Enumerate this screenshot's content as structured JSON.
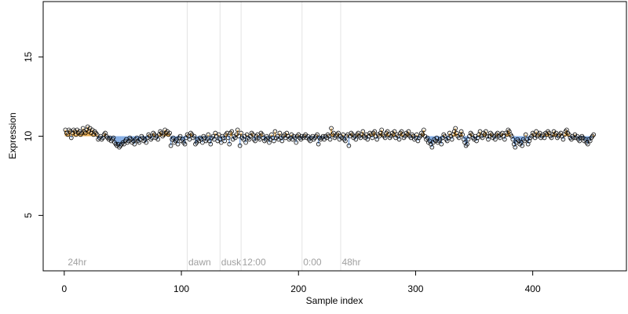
{
  "chart_data": {
    "type": "scatter",
    "title": "",
    "xlabel": "Sample index",
    "ylabel": "Expression",
    "xlim": [
      -18,
      480
    ],
    "ylim": [
      1.5,
      18.5
    ],
    "x_ticks": [
      0,
      100,
      200,
      300,
      400
    ],
    "y_ticks": [
      5,
      10,
      15
    ],
    "grid": false,
    "legend": "none",
    "annotations": [
      {
        "label": "24hr",
        "x": 3
      },
      {
        "label": "dawn",
        "x": 106
      },
      {
        "label": "dusk",
        "x": 134
      },
      {
        "label": "12:00",
        "x": 152
      },
      {
        "label": "0:00",
        "x": 204
      },
      {
        "label": "48hr",
        "x": 237
      }
    ],
    "vlines": [
      105,
      133,
      151,
      203,
      236
    ],
    "band_colors": {
      "above": "#e8a33a",
      "below": "#6f9fe0"
    },
    "series": [
      {
        "x_start": 1,
        "values": [
          10.4,
          10.2,
          10.1,
          10.4,
          10.3,
          9.9,
          10.2,
          10.4,
          10.3,
          10.1,
          10.4,
          10.2,
          10.3,
          10.1,
          10.2,
          10.5,
          10.3,
          10.2,
          10.4,
          10.6,
          10.3,
          10.5,
          10.2,
          10.4,
          10.1,
          10.3,
          10.2,
          10.1,
          9.8,
          9.9,
          10.0,
          9.8,
          9.9,
          10.1,
          10.2,
          10.0,
          9.9,
          9.8,
          9.9,
          9.7,
          9.8,
          9.9,
          9.6,
          9.5,
          9.4,
          9.5,
          9.3,
          9.4,
          9.5,
          9.6,
          9.5,
          9.7,
          9.8,
          9.6,
          9.7,
          9.9,
          9.8,
          9.6,
          9.7,
          9.5,
          9.8,
          9.9,
          9.7,
          9.6,
          9.8,
          10.0,
          9.9,
          9.7,
          9.8,
          9.6,
          9.9,
          10.1,
          10.0,
          9.8,
          9.9,
          10.2,
          10.1,
          9.9,
          10.0,
          9.8,
          10.1,
          10.3,
          10.2,
          10.0,
          10.1,
          10.4,
          10.2,
          10.3,
          10.1,
          10.2,
          9.4,
          9.8,
          9.9,
          9.6,
          9.7,
          9.8,
          9.5,
          9.9,
          10.0,
          9.7,
          9.8,
          9.6,
          9.5,
          9.9,
          10.1,
          10.0,
          9.8,
          10.2,
          10.1,
          9.9,
          10.0,
          9.5,
          9.6,
          9.8,
          9.7,
          9.9,
          9.8,
          9.6,
          10.0,
          9.9,
          9.7,
          9.8,
          10.1,
          9.7,
          9.5,
          9.9,
          10.0,
          9.8,
          10.2,
          10.0,
          9.7,
          10.1,
          9.8,
          9.6,
          10.0,
          9.9,
          9.7,
          10.1,
          10.2,
          9.9,
          9.5,
          10.2,
          10.3,
          9.8,
          10.0,
          9.9,
          10.1,
          10.4,
          10.0,
          9.4,
          10.2,
          9.9,
          9.8,
          10.0,
          9.6,
          10.1,
          9.9,
          9.8,
          10.0,
          10.2,
          10.1,
          9.8,
          9.7,
          10.0,
          10.1,
          9.9,
          9.8,
          10.2,
          10.1,
          9.9,
          9.7,
          9.8,
          10.0,
          9.9,
          9.6,
          9.8,
          10.1,
          9.9,
          9.7,
          10.3,
          9.9,
          10.0,
          9.8,
          10.2,
          9.9,
          9.7,
          10.0,
          10.1,
          9.9,
          10.2,
          10.0,
          9.8,
          9.9,
          10.1,
          9.8,
          10.0,
          9.9,
          9.6,
          10.0,
          10.1,
          9.9,
          9.8,
          10.0,
          9.9,
          10.0,
          10.1,
          9.9,
          10.0,
          9.8,
          9.7,
          9.9,
          10.0,
          9.8,
          9.9,
          10.0,
          10.1,
          9.5,
          9.9,
          9.8,
          9.9,
          10.0,
          9.8,
          10.0,
          9.9,
          10.1,
          10.0,
          9.8,
          10.5,
          10.1,
          10.2,
          9.9,
          10.0,
          10.1,
          10.2,
          9.8,
          10.0,
          9.9,
          10.1,
          9.8,
          9.7,
          10.0,
          10.1,
          9.4,
          10.0,
          10.2,
          10.1,
          9.9,
          10.0,
          9.8,
          10.1,
          10.2,
          10.0,
          9.9,
          10.1,
          10.3,
          10.0,
          9.9,
          10.1,
          9.8,
          10.0,
          10.2,
          10.1,
          9.9,
          10.2,
          10.3,
          10.0,
          9.8,
          10.1,
          10.0,
          10.2,
          10.4,
          10.1,
          10.0,
          9.9,
          10.2,
          10.3,
          10.1,
          9.9,
          10.0,
          10.2,
          10.1,
          10.3,
          9.9,
          10.1,
          10.0,
          9.8,
          10.2,
          10.3,
          10.1,
          9.9,
          10.0,
          10.2,
          10.1,
          10.3,
          10.0,
          9.9,
          10.1,
          10.0,
          9.8,
          9.9,
          10.1,
          9.7,
          9.9,
          10.0,
          10.2,
          10.1,
          10.4,
          10.0,
          9.8,
          9.9,
          9.6,
          9.7,
          9.5,
          9.3,
          9.6,
          9.8,
          9.7,
          9.9,
          9.6,
          9.7,
          9.8,
          9.5,
          9.9,
          10.1,
          10.0,
          9.8,
          9.7,
          9.9,
          10.2,
          10.0,
          9.8,
          10.1,
          10.3,
          10.5,
          10.2,
          10.0,
          9.9,
          10.1,
          10.3,
          10.1,
          9.8,
          9.6,
          9.4,
          9.5,
          9.8,
          10.0,
          10.2,
          10.1,
          9.9,
          9.8,
          10.0,
          9.7,
          9.9,
          10.1,
          10.3,
          10.0,
          9.9,
          10.2,
          10.1,
          10.3,
          10.0,
          9.8,
          10.0,
          10.2,
          10.1,
          9.9,
          10.0,
          9.8,
          10.1,
          10.2,
          10.0,
          9.9,
          10.1,
          10.2,
          10.0,
          9.8,
          10.2,
          10.1,
          10.4,
          10.3,
          10.1,
          10.0,
          9.8,
          9.5,
          9.3,
          9.6,
          9.8,
          9.7,
          9.5,
          9.6,
          9.4,
          9.8,
          9.7,
          10.1,
          9.8,
          9.5,
          9.7,
          9.9,
          10.0,
          10.2,
          10.1,
          9.9,
          10.3,
          10.0,
          10.1,
          10.2,
          9.9,
          10.0,
          10.1,
          9.9,
          10.2,
          10.1,
          10.3,
          10.2,
          10.0,
          9.9,
          10.1,
          10.3,
          10.1,
          10.2,
          9.9,
          10.0,
          10.1,
          10.2,
          10.0,
          9.8,
          10.1,
          10.3,
          10.4,
          10.2,
          10.1,
          9.9,
          9.8,
          10.0,
          9.9,
          10.1,
          9.9,
          10.0,
          9.8,
          9.7,
          9.9,
          10.0,
          9.9,
          9.7,
          9.8,
          9.6,
          9.5,
          9.8,
          9.7,
          9.9,
          10.0,
          10.1
        ]
      }
    ]
  }
}
